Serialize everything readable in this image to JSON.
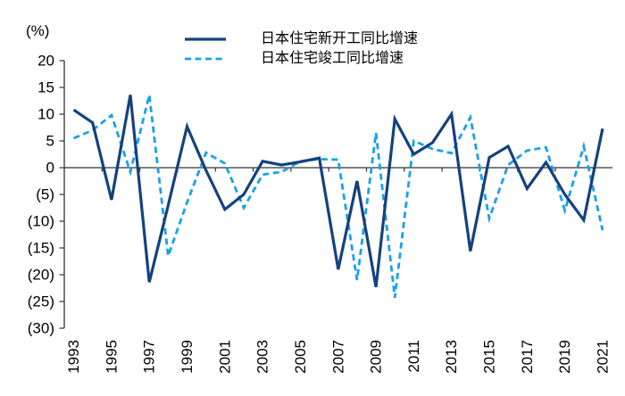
{
  "chart_data": {
    "type": "line",
    "title": "",
    "unit_label": "(%)",
    "xlabel": "",
    "ylabel": "(%)",
    "ylim": [
      -30,
      20
    ],
    "grid": false,
    "legend_position": "top-center",
    "x": [
      1993,
      1994,
      1995,
      1996,
      1997,
      1998,
      1999,
      2000,
      2001,
      2002,
      2003,
      2004,
      2005,
      2006,
      2007,
      2008,
      2009,
      2010,
      2011,
      2012,
      2013,
      2014,
      2015,
      2016,
      2017,
      2018,
      2019,
      2020,
      2021
    ],
    "x_tick_labels": [
      "1993",
      "1995",
      "1997",
      "1999",
      "2001",
      "2003",
      "2005",
      "2007",
      "2009",
      "2011",
      "2013",
      "2015",
      "2017",
      "2019",
      "2021"
    ],
    "y_tick_values": [
      20,
      15,
      10,
      5,
      0,
      -5,
      -10,
      -15,
      -20,
      -25,
      -30
    ],
    "y_tick_labels": [
      "20",
      "15",
      "10",
      "5",
      "0",
      "(5)",
      "(10)",
      "(15)",
      "(20)",
      "(25)",
      "(30)"
    ],
    "series": [
      {
        "name": "日本住宅新开工同比增速",
        "style": "solid",
        "color": "#15417e",
        "values": [
          10.8,
          8.4,
          -6.0,
          13.6,
          -21.4,
          -7.0,
          7.7,
          -0.5,
          -7.8,
          -5.0,
          1.2,
          0.5,
          1.1,
          1.8,
          -19.0,
          -2.5,
          -22.3,
          9.1,
          2.5,
          4.7,
          10.0,
          -15.6,
          1.9,
          4.0,
          -3.9,
          1.0,
          -5.0,
          -9.8,
          7.3
        ]
      },
      {
        "name": "日本住宅竣工同比增速",
        "style": "dashed",
        "color": "#18a2e6",
        "values": [
          5.5,
          7.0,
          9.8,
          -0.8,
          13.6,
          -16.5,
          -6.5,
          2.8,
          0.8,
          -7.5,
          -1.3,
          -0.8,
          1.2,
          1.6,
          1.5,
          -21.0,
          6.5,
          -24.3,
          5.0,
          3.5,
          2.7,
          9.4,
          -9.5,
          0.5,
          3.2,
          3.8,
          -8.0,
          4.0,
          -11.7
        ]
      }
    ]
  },
  "colors": {
    "axis": "#333333",
    "text": "#000000",
    "background": "#ffffff"
  }
}
